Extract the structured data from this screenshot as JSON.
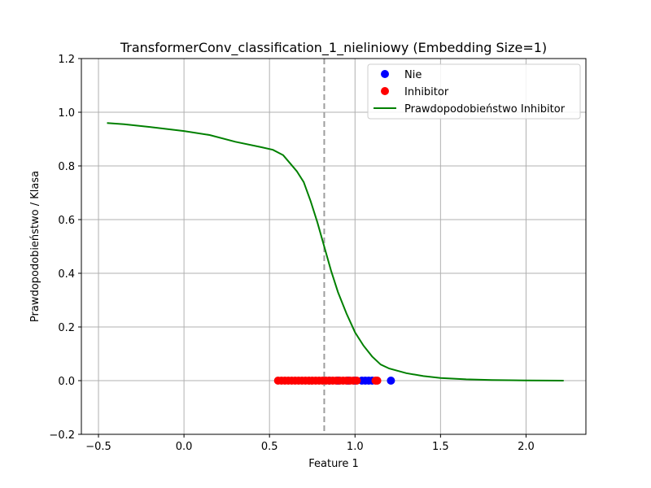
{
  "chart_data": {
    "type": "scatter",
    "title": "TransformerConv_classification_1_nieliniowy (Embedding Size=1)",
    "xlabel": "Feature 1",
    "ylabel": "Prawdopodobieństwo / Klasa",
    "xlim": [
      -0.6,
      2.35
    ],
    "ylim": [
      -0.2,
      1.2
    ],
    "xticks": [
      -0.5,
      0.0,
      0.5,
      1.0,
      1.5,
      2.0
    ],
    "xtick_labels": [
      "−0.5",
      "0.0",
      "0.5",
      "1.0",
      "1.5",
      "2.0"
    ],
    "yticks": [
      -0.2,
      0.0,
      0.2,
      0.4,
      0.6,
      0.8,
      1.0,
      1.2
    ],
    "ytick_labels": [
      "−0.2",
      "0.0",
      "0.2",
      "0.4",
      "0.6",
      "0.8",
      "1.0",
      "1.2"
    ],
    "grid": true,
    "legend_position": "top-right",
    "threshold_x": 0.82,
    "series": [
      {
        "name": "Nie",
        "kind": "scatter",
        "color": "#0000ff",
        "x": [
          0.85,
          0.9,
          0.96,
          1.0,
          1.04,
          1.06,
          1.08,
          1.1,
          1.21
        ],
        "y": [
          0,
          0,
          0,
          0,
          0,
          0,
          0,
          0,
          0
        ]
      },
      {
        "name": "Inhibitor",
        "kind": "scatter",
        "color": "#ff0000",
        "x": [
          0.55,
          0.57,
          0.59,
          0.61,
          0.63,
          0.65,
          0.67,
          0.69,
          0.71,
          0.73,
          0.75,
          0.77,
          0.79,
          0.81,
          0.83,
          0.85,
          0.87,
          0.89,
          0.91,
          0.93,
          0.95,
          0.97,
          0.99,
          1.01,
          1.12,
          1.13
        ],
        "y": [
          0,
          0,
          0,
          0,
          0,
          0,
          0,
          0,
          0,
          0,
          0,
          0,
          0,
          0,
          0,
          0,
          0,
          0,
          0,
          0,
          0,
          0,
          0,
          0,
          0,
          0
        ]
      },
      {
        "name": "Prawdopodobieństwo Inhibitor",
        "kind": "line",
        "color": "#008000",
        "x": [
          -0.45,
          -0.35,
          -0.2,
          0.0,
          0.15,
          0.3,
          0.45,
          0.52,
          0.58,
          0.62,
          0.66,
          0.7,
          0.74,
          0.78,
          0.82,
          0.86,
          0.9,
          0.95,
          1.0,
          1.05,
          1.1,
          1.15,
          1.2,
          1.3,
          1.4,
          1.5,
          1.65,
          1.8,
          2.0,
          2.22
        ],
        "y": [
          0.96,
          0.955,
          0.945,
          0.93,
          0.915,
          0.89,
          0.87,
          0.86,
          0.84,
          0.81,
          0.78,
          0.74,
          0.67,
          0.59,
          0.5,
          0.41,
          0.33,
          0.25,
          0.18,
          0.13,
          0.09,
          0.06,
          0.045,
          0.028,
          0.017,
          0.01,
          0.005,
          0.002,
          0.001,
          0.0
        ]
      }
    ]
  }
}
